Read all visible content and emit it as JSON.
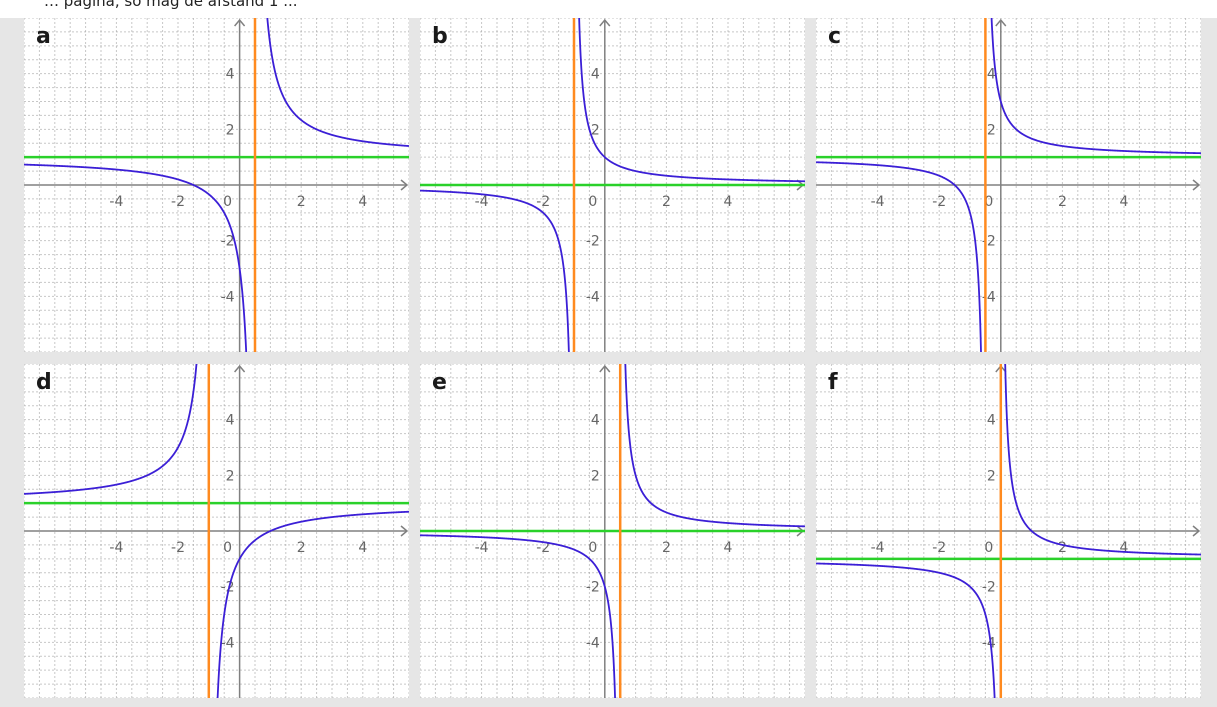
{
  "header_text": "… pagina, so mag de afstand 1 ...",
  "colors": {
    "curve": "#3b1fd6",
    "vertical_asymptote": "#ff8a1f",
    "horizontal_asymptote": "#2ad12a",
    "grid": "#9a9a9a",
    "axis": "#808080",
    "background": "#e6e6e6"
  },
  "chart_data": [
    {
      "type": "line",
      "panel": "a",
      "xlim": [
        -7,
        5.5
      ],
      "ylim": [
        -6,
        6
      ],
      "x_ticks": [
        -4,
        -2,
        0,
        2,
        4
      ],
      "y_ticks": [
        -4,
        -2,
        0,
        2,
        4
      ],
      "tick_labels_x": [
        "-4",
        "-2",
        "0",
        "2",
        "4"
      ],
      "tick_labels_y": [
        "-4",
        "-2",
        "0",
        "2",
        "4"
      ],
      "vertical_asymptote": 0.5,
      "horizontal_asymptote": 1,
      "function": "y = 1 + 2/(x - 0.5)",
      "grid": true
    },
    {
      "type": "line",
      "panel": "b",
      "xlim": [
        -6,
        6.5
      ],
      "ylim": [
        -6,
        6
      ],
      "x_ticks": [
        -4,
        -2,
        0,
        2,
        4
      ],
      "y_ticks": [
        -4,
        -2,
        2,
        4
      ],
      "tick_labels_x": [
        "-4",
        "-2",
        "0",
        "2",
        "4"
      ],
      "tick_labels_y": [
        "-4",
        "-2",
        "2",
        "4"
      ],
      "vertical_asymptote": -1,
      "horizontal_asymptote": 0,
      "function": "y = 1/(x + 1)",
      "grid": true
    },
    {
      "type": "line",
      "panel": "c",
      "xlim": [
        -6,
        6.5
      ],
      "ylim": [
        -6,
        6
      ],
      "x_ticks": [
        -4,
        -2,
        0,
        2,
        4
      ],
      "y_ticks": [
        -4,
        -2,
        2,
        4
      ],
      "tick_labels_x": [
        "-4",
        "-2",
        "0",
        "2",
        "4"
      ],
      "tick_labels_y": [
        "-4",
        "-2",
        "2",
        "4"
      ],
      "vertical_asymptote": -0.5,
      "horizontal_asymptote": 1,
      "function": "y = 1 + 1/(x + 0.5)",
      "grid": true
    },
    {
      "type": "line",
      "panel": "d",
      "xlim": [
        -7,
        5.5
      ],
      "ylim": [
        -6,
        6
      ],
      "x_ticks": [
        -4,
        -2,
        0,
        2,
        4
      ],
      "y_ticks": [
        -4,
        -2,
        0,
        2,
        4
      ],
      "tick_labels_x": [
        "-4",
        "-2",
        "0",
        "2",
        "4"
      ],
      "tick_labels_y": [
        "-4",
        "-2",
        "0",
        "2",
        "4"
      ],
      "vertical_asymptote": -1,
      "horizontal_asymptote": 1,
      "function": "y = 1 - 2/(x + 1)",
      "grid": true
    },
    {
      "type": "line",
      "panel": "e",
      "xlim": [
        -6,
        6.5
      ],
      "ylim": [
        -6,
        6
      ],
      "x_ticks": [
        -4,
        -2,
        0,
        2,
        4
      ],
      "y_ticks": [
        -4,
        -2,
        0,
        2,
        4
      ],
      "tick_labels_x": [
        "-4",
        "-2",
        "0",
        "2",
        "4"
      ],
      "tick_labels_y": [
        "-4",
        "-2",
        "0",
        "2",
        "4"
      ],
      "vertical_asymptote": 0.5,
      "horizontal_asymptote": 0,
      "function": "y = 1/(x - 0.5)",
      "grid": true
    },
    {
      "type": "line",
      "panel": "f",
      "xlim": [
        -6,
        6.5
      ],
      "ylim": [
        -6,
        6
      ],
      "x_ticks": [
        -4,
        -2,
        0,
        2,
        4
      ],
      "y_ticks": [
        -4,
        -2,
        0,
        2,
        4
      ],
      "tick_labels_x": [
        "-4",
        "-2",
        "0",
        "2",
        "4"
      ],
      "tick_labels_y": [
        "-4",
        "-2",
        "0",
        "2",
        "4"
      ],
      "vertical_asymptote": 0,
      "horizontal_asymptote": -1,
      "function": "y = -1 + 1/x",
      "grid": true
    }
  ]
}
